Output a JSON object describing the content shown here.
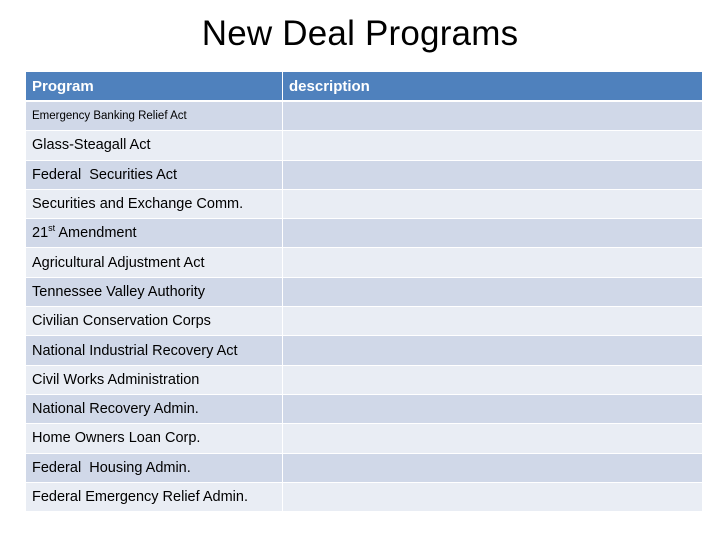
{
  "title": "New Deal Programs",
  "table": {
    "headers": [
      "Program",
      "description"
    ],
    "rows": [
      {
        "program": "Emergency Banking Relief Act",
        "description": ""
      },
      {
        "program": "Glass-Steagall Act",
        "description": ""
      },
      {
        "program": "Federal  Securities Act",
        "description": ""
      },
      {
        "program": "Securities and Exchange Comm.",
        "description": ""
      },
      {
        "program": "21",
        "program_sup": "st",
        "program_suffix": " Amendment",
        "description": ""
      },
      {
        "program": "Agricultural Adjustment Act",
        "description": ""
      },
      {
        "program": "Tennessee Valley Authority",
        "description": ""
      },
      {
        "program": "Civilian Conservation Corps",
        "description": ""
      },
      {
        "program": "National Industrial Recovery Act",
        "description": ""
      },
      {
        "program": "Civil Works Administration",
        "description": ""
      },
      {
        "program": "National Recovery Admin.",
        "description": ""
      },
      {
        "program": "Home Owners Loan Corp.",
        "description": ""
      },
      {
        "program": "Federal  Housing Admin.",
        "description": ""
      },
      {
        "program": "Federal Emergency Relief Admin.",
        "description": ""
      }
    ]
  },
  "colors": {
    "header_bg": "#4f81bd",
    "header_text": "#ffffff",
    "row_odd": "#d0d8e8",
    "row_even": "#e9edf4"
  }
}
